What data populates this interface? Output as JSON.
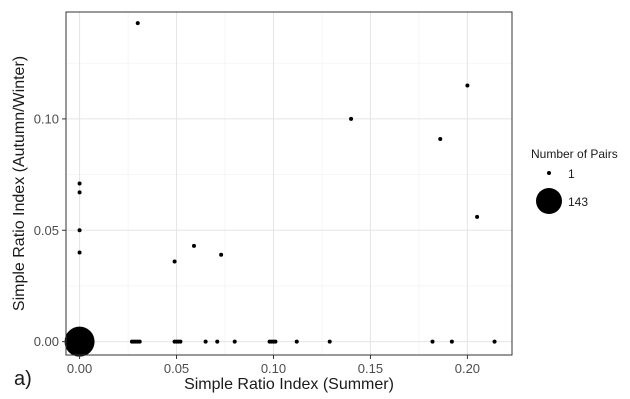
{
  "panel_label": "a)",
  "chart_data": {
    "type": "scatter",
    "title": "",
    "xlabel": "Simple Ratio Index (Summer)",
    "ylabel": "Simple Ratio Index (Autumn/Winter)",
    "xlim": [
      -0.007,
      0.223
    ],
    "ylim": [
      -0.006,
      0.148
    ],
    "x_ticks": [
      0.0,
      0.05,
      0.1,
      0.15,
      0.2
    ],
    "x_tick_labels": [
      "0.00",
      "0.05",
      "0.10",
      "0.15",
      "0.20"
    ],
    "y_ticks": [
      0.0,
      0.05,
      0.1
    ],
    "y_tick_labels": [
      "0.00",
      "0.05",
      "0.10"
    ],
    "grid": true,
    "legend": {
      "title": "Number of Pairs",
      "position": "right",
      "entries": [
        {
          "label": "1",
          "size": 1
        },
        {
          "label": "143",
          "size": 143
        }
      ]
    },
    "points": [
      {
        "x": 0.0,
        "y": 0.0,
        "size": 143
      },
      {
        "x": 0.0,
        "y": 0.071,
        "size": 1
      },
      {
        "x": 0.0,
        "y": 0.067,
        "size": 1
      },
      {
        "x": 0.0,
        "y": 0.05,
        "size": 1
      },
      {
        "x": 0.0,
        "y": 0.04,
        "size": 1
      },
      {
        "x": 0.03,
        "y": 0.143,
        "size": 1
      },
      {
        "x": 0.027,
        "y": 0.0,
        "size": 1
      },
      {
        "x": 0.028,
        "y": 0.0,
        "size": 1
      },
      {
        "x": 0.029,
        "y": 0.0,
        "size": 1
      },
      {
        "x": 0.03,
        "y": 0.0,
        "size": 1
      },
      {
        "x": 0.031,
        "y": 0.0,
        "size": 1
      },
      {
        "x": 0.049,
        "y": 0.036,
        "size": 1
      },
      {
        "x": 0.049,
        "y": 0.0,
        "size": 1
      },
      {
        "x": 0.05,
        "y": 0.0,
        "size": 1
      },
      {
        "x": 0.051,
        "y": 0.0,
        "size": 1
      },
      {
        "x": 0.052,
        "y": 0.0,
        "size": 1
      },
      {
        "x": 0.059,
        "y": 0.043,
        "size": 1
      },
      {
        "x": 0.065,
        "y": 0.0,
        "size": 1
      },
      {
        "x": 0.071,
        "y": 0.0,
        "size": 1
      },
      {
        "x": 0.073,
        "y": 0.039,
        "size": 1
      },
      {
        "x": 0.08,
        "y": 0.0,
        "size": 1
      },
      {
        "x": 0.098,
        "y": 0.0,
        "size": 1
      },
      {
        "x": 0.099,
        "y": 0.0,
        "size": 1
      },
      {
        "x": 0.1,
        "y": 0.0,
        "size": 1
      },
      {
        "x": 0.101,
        "y": 0.0,
        "size": 1
      },
      {
        "x": 0.112,
        "y": 0.0,
        "size": 1
      },
      {
        "x": 0.129,
        "y": 0.0,
        "size": 1
      },
      {
        "x": 0.14,
        "y": 0.1,
        "size": 1
      },
      {
        "x": 0.182,
        "y": 0.0,
        "size": 1
      },
      {
        "x": 0.186,
        "y": 0.091,
        "size": 1
      },
      {
        "x": 0.192,
        "y": 0.0,
        "size": 1
      },
      {
        "x": 0.2,
        "y": 0.115,
        "size": 1
      },
      {
        "x": 0.205,
        "y": 0.056,
        "size": 1
      },
      {
        "x": 0.214,
        "y": 0.0,
        "size": 1
      }
    ]
  }
}
